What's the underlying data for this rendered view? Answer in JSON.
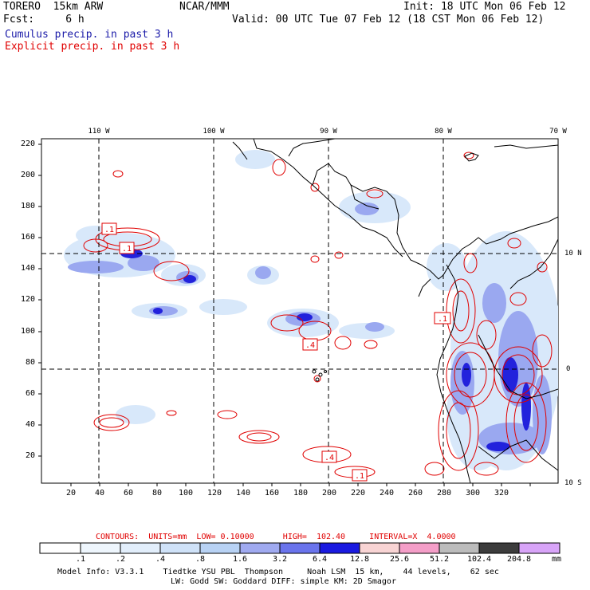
{
  "header": {
    "model": "TORERO  15km ARW",
    "org": "NCAR/MMM",
    "init": "Init: 18 UTC Mon 06 Feb 12",
    "fcst": "Fcst:     6 h",
    "valid": "Valid: 00 UTC Tue 07 Feb 12 (18 CST Mon 06 Feb 12)",
    "cumulus": "Cumulus precip. in past 3 h",
    "explicit": "Explicit precip. in past 3 h"
  },
  "colors": {
    "cumulus_text": "#1a1aa8",
    "explicit_text": "#e00000",
    "contour": "#e00000"
  },
  "map": {
    "lon_labels": [
      "110 W",
      "100 W",
      "90 W",
      "80 W",
      "70 W"
    ],
    "lat_labels": [
      "10 N",
      "0",
      "10 S"
    ],
    "x_ticks": [
      "20",
      "40",
      "60",
      "80",
      "100",
      "120",
      "140",
      "160",
      "180",
      "200",
      "220",
      "240",
      "260",
      "280",
      "300",
      "320"
    ],
    "y_ticks": [
      "220",
      "200",
      "180",
      "160",
      "140",
      "120",
      "100",
      "80",
      "60",
      "40",
      "20"
    ],
    "box_labels": [
      ".1",
      ".1",
      ".1",
      ".4",
      ".4",
      ".1"
    ]
  },
  "contour_info": {
    "text": "CONTOURS:  UNITS=mm  LOW= 0.10000      HIGH=  102.40     INTERVAL=X  4.0000"
  },
  "colorbar": {
    "labels": [
      ".1",
      ".2",
      ".4",
      ".8",
      "1.6",
      "3.2",
      "6.4",
      "12.8",
      "25.6",
      "51.2",
      "102.4",
      "204.8"
    ],
    "unit": "mm",
    "colors": [
      "#ffffff",
      "#eaf3fc",
      "#d2e7fa",
      "#b4d4f4",
      "#c4cef4",
      "#a0a8f0",
      "#6474ec",
      "#3a48e4",
      "#1414e0",
      "#f8d0d0",
      "#f49cc4",
      "#bcbcbc",
      "#3c3c3c",
      "#d4a0f4"
    ]
  },
  "footer": {
    "line1": "Model Info: V3.3.1    Tiedtke YSU PBL  Thompson     Noah LSM  15 km,    44 levels,    62 sec",
    "line2": "LW: Godd SW: Goddard DIFF: simple KM: 2D Smagor"
  }
}
